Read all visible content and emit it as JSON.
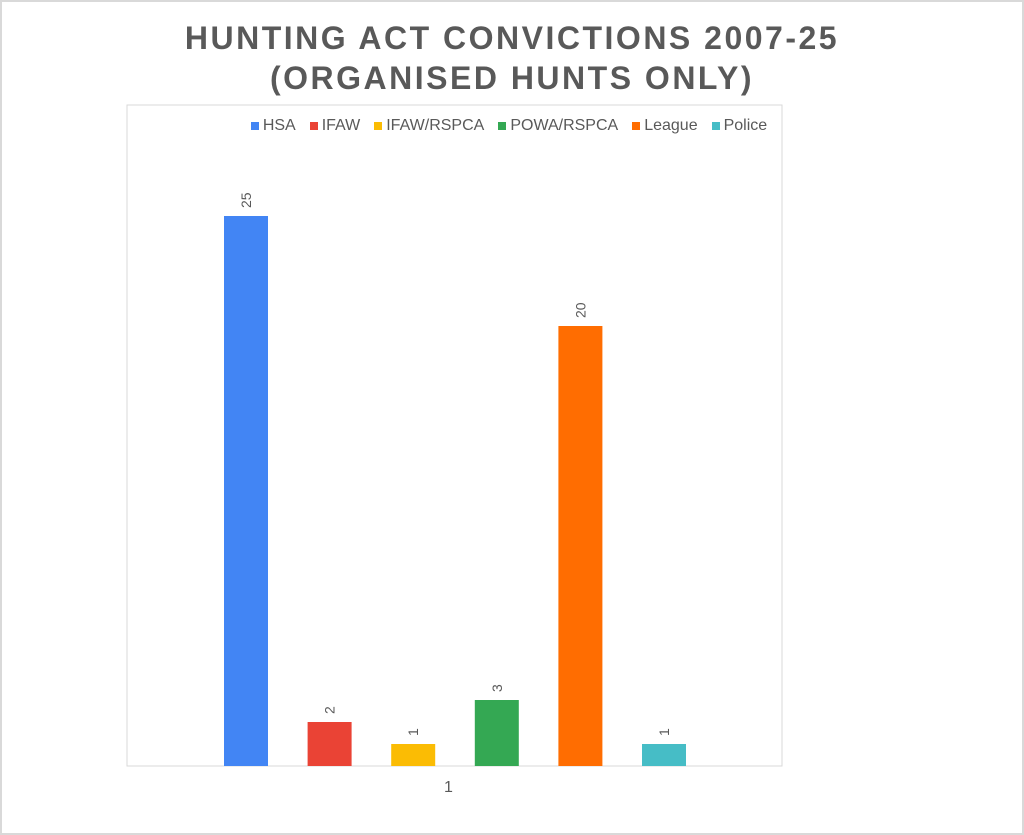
{
  "chart_data": {
    "type": "bar",
    "title": "HUNTING ACT CONVICTIONS 2007-25",
    "subtitle": "(ORGANISED HUNTS ONLY)",
    "categories": [
      "1"
    ],
    "series": [
      {
        "name": "HSA",
        "values": [
          25
        ],
        "color": "#4285f4"
      },
      {
        "name": "IFAW",
        "values": [
          2
        ],
        "color": "#ea4335"
      },
      {
        "name": "IFAW/RSPCA",
        "values": [
          1
        ],
        "color": "#fbbc04"
      },
      {
        "name": "POWA/RSPCA",
        "values": [
          3
        ],
        "color": "#34a853"
      },
      {
        "name": "League",
        "values": [
          20
        ],
        "color": "#ff6d01"
      },
      {
        "name": "Police",
        "values": [
          1
        ],
        "color": "#46bdc6"
      }
    ],
    "ylim": [
      0,
      30
    ],
    "grid": false,
    "legend": "top",
    "data_labels": true
  }
}
